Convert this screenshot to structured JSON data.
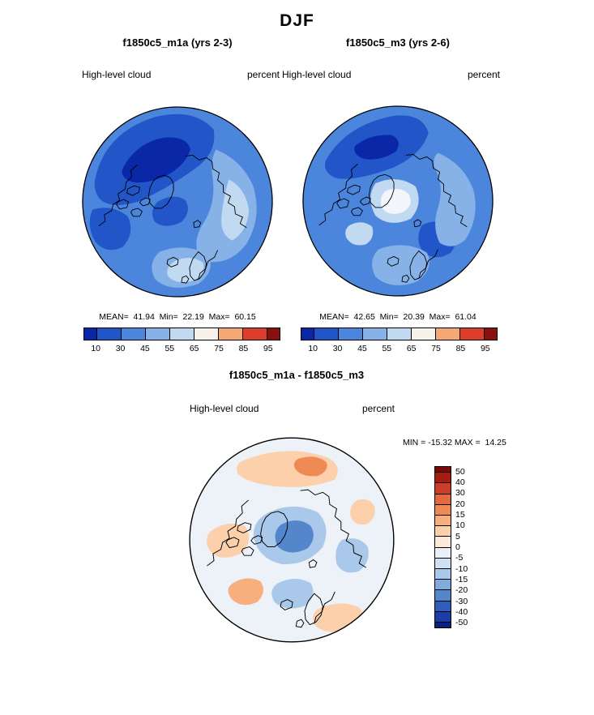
{
  "title": "DJF",
  "panels": [
    {
      "title": "f1850c5_m1a (yrs 2-3)",
      "field_label": "High-level cloud",
      "units_label": "percent",
      "stats_line": "MEAN=  41.94  Min=  22.19  Max=  60.15",
      "colorbar": {
        "orientation": "horizontal",
        "ticks": [
          "10",
          "30",
          "45",
          "55",
          "65",
          "75",
          "85",
          "95"
        ],
        "palette": [
          "#0a27a8",
          "#2155c8",
          "#4b86dc",
          "#86b2e8",
          "#c2d9f2",
          "#f7f1ec",
          "#f5a873",
          "#dd3d2d",
          "#8a0f0f"
        ]
      }
    },
    {
      "title": "f1850c5_m3 (yrs 2-6)",
      "field_label": "High-level cloud",
      "units_label": "percent",
      "stats_line": "MEAN=  42.65  Min=  20.39  Max=  61.04",
      "colorbar": {
        "orientation": "horizontal",
        "ticks": [
          "10",
          "30",
          "45",
          "55",
          "65",
          "75",
          "85",
          "95"
        ],
        "palette": [
          "#0a27a8",
          "#2155c8",
          "#4b86dc",
          "#86b2e8",
          "#c2d9f2",
          "#f7f1ec",
          "#f5a873",
          "#dd3d2d",
          "#8a0f0f"
        ]
      }
    }
  ],
  "diff": {
    "title": "f1850c5_m1a - f1850c5_m3",
    "field_label": "High-level cloud",
    "units_label": "percent",
    "minmax_line": "MIN = -15.32 MAX =  14.25",
    "colorbar": {
      "orientation": "vertical",
      "ticks": [
        "50",
        "40",
        "30",
        "20",
        "15",
        "10",
        "5",
        "0",
        "-5",
        "-10",
        "-15",
        "-20",
        "-30",
        "-40",
        "-50"
      ],
      "palette": [
        "#7a0a0a",
        "#a81c10",
        "#cc3d2a",
        "#e4693f",
        "#f08a55",
        "#f7af7e",
        "#fbd0ab",
        "#fde9d9",
        "#e9f0f8",
        "#cfe0f2",
        "#aac9ea",
        "#7fabdd",
        "#5486cc",
        "#2f5eb8",
        "#1b3da8",
        "#0c2180"
      ]
    }
  },
  "chart_data": [
    {
      "type": "heatmap",
      "subtype": "polar-stereographic-map",
      "season": "DJF",
      "title": "f1850c5_m1a (yrs 2-3)",
      "variable": "High-level cloud",
      "units": "percent",
      "stats": {
        "mean": 41.94,
        "min": 22.19,
        "max": 60.15
      },
      "contour_levels": [
        10,
        30,
        45,
        55,
        65,
        75,
        85,
        95
      ],
      "legend_position": "bottom",
      "palette_direction": "blue-to-red"
    },
    {
      "type": "heatmap",
      "subtype": "polar-stereographic-map",
      "season": "DJF",
      "title": "f1850c5_m3 (yrs 2-6)",
      "variable": "High-level cloud",
      "units": "percent",
      "stats": {
        "mean": 42.65,
        "min": 20.39,
        "max": 61.04
      },
      "contour_levels": [
        10,
        30,
        45,
        55,
        65,
        75,
        85,
        95
      ],
      "legend_position": "bottom",
      "palette_direction": "blue-to-red"
    },
    {
      "type": "heatmap",
      "subtype": "polar-stereographic-difference-map",
      "season": "DJF",
      "title": "f1850c5_m1a - f1850c5_m3",
      "variable": "High-level cloud",
      "units": "percent",
      "stats": {
        "min": -15.32,
        "max": 14.25
      },
      "contour_levels": [
        50,
        40,
        30,
        20,
        15,
        10,
        5,
        0,
        -5,
        -10,
        -15,
        -20,
        -30,
        -40,
        -50
      ],
      "legend_position": "right",
      "palette_direction": "red-to-blue"
    }
  ]
}
